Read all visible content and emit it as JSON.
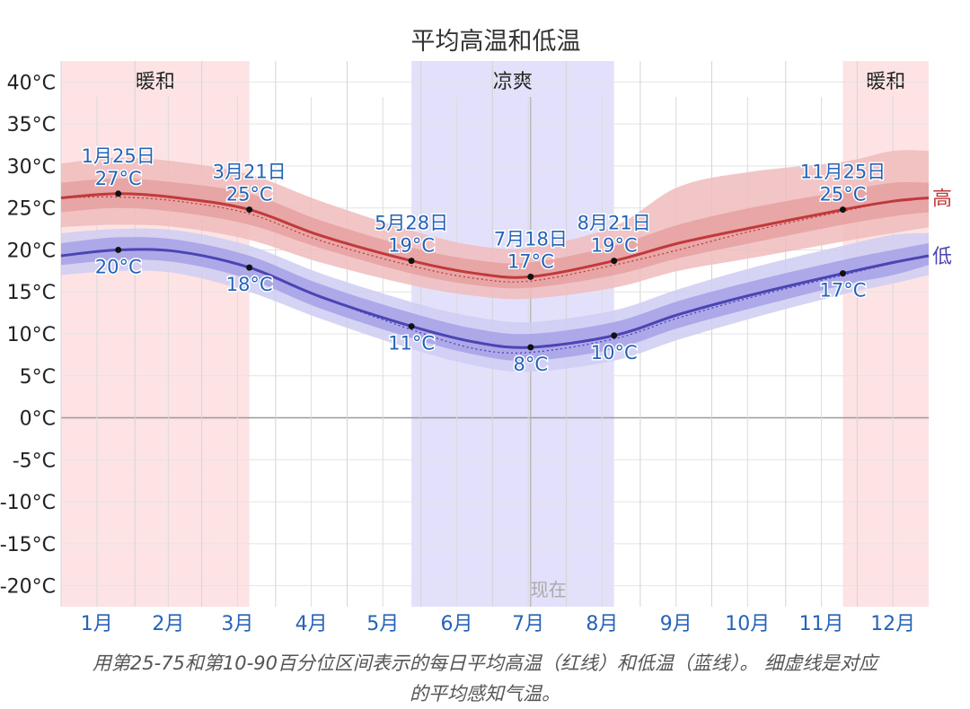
{
  "chart_data": {
    "type": "line",
    "title": "平均高温和低温",
    "ylim": [
      -22.5,
      42.5
    ],
    "y_ticks": [
      40,
      35,
      30,
      25,
      20,
      15,
      10,
      5,
      0,
      -5,
      -10,
      -15,
      -20
    ],
    "y_tick_labels": [
      "40°C",
      "35°C",
      "30°C",
      "25°C",
      "20°C",
      "15°C",
      "10°C",
      "5°C",
      "0°C",
      "-5°C",
      "-10°C",
      "-15°C",
      "-20°C"
    ],
    "months": [
      "1月",
      "2月",
      "3月",
      "4月",
      "5月",
      "6月",
      "7月",
      "8月",
      "9月",
      "10月",
      "11月",
      "12月"
    ],
    "seasons": [
      {
        "label": "暖和",
        "start_day": 1,
        "end_day": 80,
        "color": "#fde3e3"
      },
      {
        "label": "凉爽",
        "start_day": 148,
        "end_day": 233,
        "color": "#e3e0fb"
      },
      {
        "label": "暖和",
        "start_day": 329,
        "end_day": 365,
        "color": "#fde3e3"
      }
    ],
    "now_label": "现在",
    "now_day": 198,
    "series": [
      {
        "name": "高",
        "color": "#c0393b",
        "days": [
          1,
          25,
          50,
          80,
          110,
          148,
          175,
          198,
          233,
          260,
          290,
          329,
          350,
          365
        ],
        "values": [
          26.2,
          26.7,
          26.2,
          24.8,
          21.7,
          18.7,
          17.2,
          16.8,
          18.7,
          20.8,
          22.6,
          24.8,
          25.8,
          26.2
        ],
        "band_25_75": [
          [
            24.5,
            28.0
          ],
          [
            25.0,
            28.5
          ],
          [
            24.5,
            28.0
          ],
          [
            23.0,
            26.7
          ],
          [
            20.2,
            23.5
          ],
          [
            17.2,
            20.3
          ],
          [
            15.8,
            18.8
          ],
          [
            15.5,
            18.5
          ],
          [
            17.0,
            20.5
          ],
          [
            19.0,
            23.0
          ],
          [
            20.8,
            25.0
          ],
          [
            23.0,
            27.0
          ],
          [
            24.0,
            28.0
          ],
          [
            24.5,
            28.0
          ]
        ],
        "band_10_90": [
          [
            22.7,
            30.3
          ],
          [
            23.0,
            31.0
          ],
          [
            22.7,
            30.5
          ],
          [
            21.2,
            29.0
          ],
          [
            18.5,
            25.8
          ],
          [
            15.8,
            22.3
          ],
          [
            14.5,
            20.5
          ],
          [
            14.2,
            20.3
          ],
          [
            15.5,
            22.8
          ],
          [
            17.5,
            27.5
          ],
          [
            19.0,
            29.3
          ],
          [
            21.0,
            30.5
          ],
          [
            22.0,
            31.8
          ],
          [
            22.7,
            31.8
          ]
        ],
        "feels_like": [
          26.2,
          26.3,
          25.8,
          24.3,
          21.1,
          18.1,
          16.6,
          16.3,
          18.2,
          20.0,
          22.2,
          24.6,
          25.8,
          26.2
        ]
      },
      {
        "name": "低",
        "color": "#4b44b3",
        "days": [
          1,
          25,
          50,
          80,
          110,
          148,
          175,
          198,
          233,
          260,
          290,
          329,
          350,
          365
        ],
        "values": [
          19.3,
          20.0,
          19.8,
          17.9,
          14.4,
          10.9,
          9.0,
          8.4,
          9.8,
          12.3,
          14.6,
          17.2,
          18.5,
          19.3
        ],
        "band_25_75": [
          [
            18.2,
            20.8
          ],
          [
            18.8,
            21.5
          ],
          [
            18.5,
            21.2
          ],
          [
            16.5,
            19.3
          ],
          [
            13.0,
            15.9
          ],
          [
            9.5,
            12.5
          ],
          [
            7.5,
            10.6
          ],
          [
            6.8,
            10.0
          ],
          [
            8.2,
            11.4
          ],
          [
            10.7,
            13.9
          ],
          [
            13.0,
            16.2
          ],
          [
            15.8,
            18.8
          ],
          [
            17.0,
            20.0
          ],
          [
            18.2,
            20.8
          ]
        ],
        "band_10_90": [
          [
            17.0,
            22.0
          ],
          [
            17.5,
            22.5
          ],
          [
            17.2,
            22.3
          ],
          [
            15.0,
            20.5
          ],
          [
            11.8,
            17.2
          ],
          [
            8.2,
            13.8
          ],
          [
            6.2,
            12.0
          ],
          [
            5.5,
            11.4
          ],
          [
            6.8,
            12.8
          ],
          [
            9.3,
            15.3
          ],
          [
            11.8,
            17.8
          ],
          [
            14.7,
            20.5
          ],
          [
            16.0,
            21.8
          ],
          [
            17.0,
            22.0
          ]
        ],
        "feels_like": [
          19.3,
          20.0,
          19.8,
          17.9,
          14.4,
          10.5,
          8.2,
          7.8,
          9.4,
          11.9,
          14.3,
          17.0,
          18.4,
          19.3
        ]
      }
    ],
    "annotations": [
      {
        "day": 25,
        "value": 26.7,
        "date": "1月25日",
        "label": "27°C",
        "pos": "above"
      },
      {
        "day": 25,
        "value": 20.0,
        "label": "20°C",
        "pos": "below"
      },
      {
        "day": 80,
        "value": 24.8,
        "date": "3月21日",
        "label": "25°C",
        "pos": "above"
      },
      {
        "day": 80,
        "value": 17.9,
        "label": "18°C",
        "pos": "below"
      },
      {
        "day": 148,
        "value": 18.7,
        "date": "5月28日",
        "label": "19°C",
        "pos": "above"
      },
      {
        "day": 148,
        "value": 10.9,
        "label": "11°C",
        "pos": "below"
      },
      {
        "day": 198,
        "value": 16.8,
        "date": "7月18日",
        "label": "17°C",
        "pos": "above"
      },
      {
        "day": 198,
        "value": 8.4,
        "label": "8°C",
        "pos": "below"
      },
      {
        "day": 233,
        "value": 18.7,
        "date": "8月21日",
        "label": "19°C",
        "pos": "above"
      },
      {
        "day": 233,
        "value": 9.8,
        "label": "10°C",
        "pos": "below"
      },
      {
        "day": 329,
        "value": 24.8,
        "date": "11月25日",
        "label": "25°C",
        "pos": "above"
      },
      {
        "day": 329,
        "value": 17.2,
        "label": "17°C",
        "pos": "below"
      }
    ]
  },
  "caption": {
    "line1": "用第25-75和第10-90百分位区间表示的每日平均高温（红线）和低温（蓝线）。 细虚线是对应",
    "line2": "的平均感知气温。"
  }
}
